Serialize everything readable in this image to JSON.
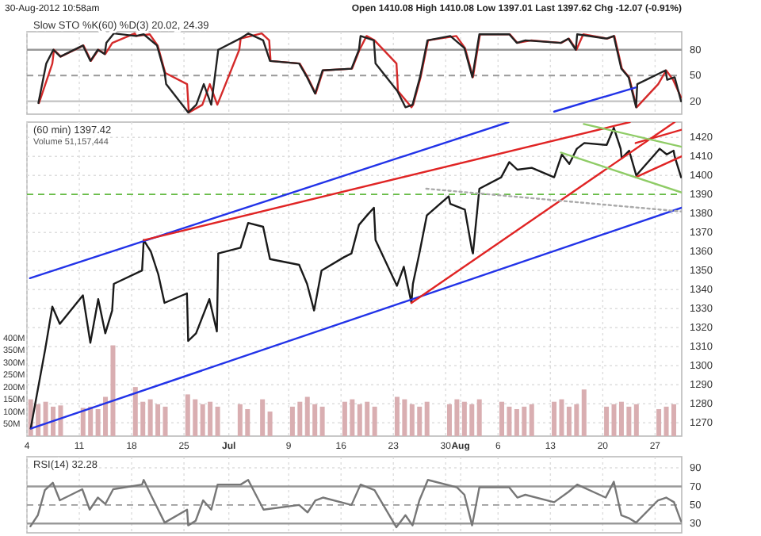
{
  "chart_data": [
    {
      "type": "line",
      "title": "Slow STO %K(60) %D(3) 20.02, 24.39",
      "annotations": [
        "30-Aug-2012 10:58am",
        "Open 1410.08 High 1410.08 Low 1397.01 Last 1397.62 Chg -12.07 (-0.91%)"
      ],
      "xlim": [
        "2012-06-04",
        "2012-08-30T13:30"
      ],
      "ylim": [
        5,
        101
      ],
      "yticks": [
        20,
        50,
        80
      ],
      "xticks": [
        {
          "value": "2012-06-04",
          "label": null
        },
        {
          "value": "2012-06-11",
          "label": null
        },
        {
          "value": "2012-06-18",
          "label": null
        },
        {
          "value": "2012-06-25",
          "label": null
        },
        {
          "value": "2012-07",
          "label": null
        },
        {
          "value": "2012-07-09",
          "label": null
        },
        {
          "value": "2012-07-16",
          "label": null
        },
        {
          "value": "2012-07-23",
          "label": null
        },
        {
          "value": "2012-07-30",
          "label": null
        },
        {
          "value": "2012-08",
          "label": null
        },
        {
          "value": "2012-08-06",
          "label": null
        },
        {
          "value": "2012-08-13",
          "label": null
        },
        {
          "value": "2012-08-20",
          "label": null
        },
        {
          "value": "2012-08-27",
          "label": null
        }
      ],
      "tick_labels": "y",
      "grid": "x",
      "marker": "none",
      "line_style": "solid",
      "ref_lines": [
        {
          "axis": "y",
          "value": 20,
          "color": "#c8c8c8"
        },
        {
          "axis": "y",
          "value": 50,
          "color": "#999999",
          "line_style": "dashed"
        },
        {
          "axis": "y",
          "value": 80,
          "color": "#999999"
        }
      ],
      "series": [
        {
          "color": "#d42a2a",
          "x": [
            "2012-06-05T14:45",
            "2012-06-07T09:30",
            "2012-06-07T14:45",
            "2012-06-08T12:45",
            "2012-06-11T13:30",
            "2012-06-12T13:30",
            "2012-06-13T13:30",
            "2012-06-14T11:30",
            "2012-06-15T10:00",
            "2012-06-18T10:00",
            "2012-06-18T15:30",
            "2012-06-20T10:00",
            "2012-06-21T11:30",
            "2012-06-22T12:00",
            "2012-06-25T10:00",
            "2012-06-25T15:30",
            "2012-06-27T11:00",
            "2012-06-28T11:00",
            "2012-06-29T11:00",
            "2012-07-02T09:30",
            "2012-07-02T14:00",
            "2012-07-05T09:30",
            "2012-07-06T09:30",
            "2012-07-06T14:00",
            "2012-07-10T11:30",
            "2012-07-11T12:45",
            "2012-07-12T14:45",
            "2012-07-13T14:45",
            "2012-07-17T11:30",
            "2012-07-18T11:30",
            "2012-07-19T10:00",
            "2012-07-20T11:30",
            "2012-07-23T10:00",
            "2012-07-23T14:45",
            "2012-07-25T10:00",
            "2012-07-25T15:30",
            "2012-07-26T15:30",
            "2012-07-27T15:30",
            "2012-07-31T10:00",
            "2012-08-01T14:00",
            "2012-08-02T15:30",
            "2012-08-03T14:00",
            "2012-08-07T14:00",
            "2012-08-08T14:00",
            "2012-08-10T11:00",
            "2012-08-14T11:30",
            "2012-08-15T11:30",
            "2012-08-16T11:30",
            "2012-08-17T09:30",
            "2012-08-20T14:45",
            "2012-08-21T13:30",
            "2012-08-22T13:30",
            "2012-08-23T12:45",
            "2012-08-24T12:45",
            "2012-08-27T10:00",
            "2012-08-28T11:30",
            "2012-08-29T10:00",
            "2012-08-30T11:30"
          ],
          "values": [
            18,
            64,
            80,
            72,
            85,
            67,
            80,
            75,
            88,
            99,
            96,
            98,
            85,
            53,
            40,
            7,
            16,
            40,
            16,
            80,
            93,
            99,
            91,
            67,
            64,
            48,
            29,
            56,
            58,
            80,
            96,
            91,
            64,
            32,
            13,
            16,
            48,
            91,
            96,
            82,
            48,
            98,
            98,
            88,
            91,
            88,
            93,
            80,
            98,
            93,
            96,
            58,
            48,
            13,
            40,
            56,
            45,
            24.39
          ]
        },
        {
          "color": "#222222",
          "x": [
            "2012-06-05T12:45",
            "2012-06-06T14:00",
            "2012-06-07T12:45",
            "2012-06-08T11:00",
            "2012-06-11T11:30",
            "2012-06-12T11:30",
            "2012-06-13T11:30",
            "2012-06-14T09:30",
            "2012-06-14T14:45",
            "2012-06-15T14:45",
            "2012-06-18T13:30",
            "2012-06-19T14:45",
            "2012-06-21T09:30",
            "2012-06-22T10:00",
            "2012-06-22T14:45",
            "2012-06-25T13:30",
            "2012-06-26T15:30",
            "2012-06-27T15:30",
            "2012-06-28T15:30",
            "2012-06-29T14:00",
            "2012-07-02T12:00",
            "2012-07-03T14:00",
            "2012-07-05T14:00",
            "2012-07-06T12:00",
            "2012-07-10T09:30",
            "2012-07-11T11:00",
            "2012-07-12T12:45",
            "2012-07-13T12:45",
            "2012-07-17T09:30",
            "2012-07-18T09:30",
            "2012-07-18T14:45",
            "2012-07-20T09:30",
            "2012-07-20T14:45",
            "2012-07-23T12:45",
            "2012-07-24T14:45",
            "2012-07-25T13:30",
            "2012-07-26T13:30",
            "2012-07-27T13:30",
            "2012-07-30T14:45",
            "2012-08-01T12:00",
            "2012-08-02T13:30",
            "2012-08-03T12:00",
            "2012-08-07T12:00",
            "2012-08-08T12:00",
            "2012-08-09T15:30",
            "2012-08-14T09:30",
            "2012-08-15T09:30",
            "2012-08-16T09:30",
            "2012-08-16T14:00",
            "2012-08-20T12:45",
            "2012-08-21T11:30",
            "2012-08-22T11:30",
            "2012-08-23T11:00",
            "2012-08-24T11:00",
            "2012-08-24T14:45",
            "2012-08-28T09:30",
            "2012-08-28T14:45",
            "2012-08-29T14:45",
            "2012-08-30T11:30"
          ],
          "values": [
            18,
            64,
            80,
            72,
            85,
            67,
            80,
            75,
            88,
            99,
            96,
            98,
            85,
            53,
            40,
            7,
            16,
            40,
            16,
            80,
            93,
            99,
            91,
            67,
            64,
            48,
            29,
            56,
            58,
            80,
            96,
            91,
            64,
            32,
            13,
            16,
            48,
            91,
            96,
            82,
            48,
            98,
            98,
            88,
            91,
            88,
            93,
            80,
            98,
            93,
            96,
            58,
            48,
            13,
            40,
            56,
            45,
            48,
            20.02
          ]
        },
        {
          "color": "#2233e8",
          "x": [
            "2012-08-13T12:00",
            "2012-08-24T09:30"
          ],
          "values": [
            8,
            36
          ]
        }
      ]
    },
    {
      "type": "line",
      "title": "(60 min) 1397.42",
      "subtitle": "Volume 51,157,444",
      "xlim": [
        "2012-06-04",
        "2012-08-30T13:30"
      ],
      "ylim": [
        1263,
        1428
      ],
      "yticks": [
        1270,
        1280,
        1290,
        1300,
        1310,
        1320,
        1330,
        1340,
        1350,
        1360,
        1370,
        1380,
        1390,
        1400,
        1410,
        1420
      ],
      "y2lim": [
        0,
        1280
      ],
      "y2ticks": [
        {
          "value": 50,
          "label": "50M"
        },
        {
          "value": 100,
          "label": "100M"
        },
        {
          "value": 150,
          "label": "150M"
        },
        {
          "value": 200,
          "label": "200M"
        },
        {
          "value": 250,
          "label": "250M"
        },
        {
          "value": 300,
          "label": "300M"
        },
        {
          "value": 350,
          "label": "350M"
        },
        {
          "value": 400,
          "label": "400M"
        }
      ],
      "xticks": [
        {
          "value": "2012-06-04",
          "label": "4"
        },
        {
          "value": "2012-06-11",
          "label": "11"
        },
        {
          "value": "2012-06-18",
          "label": "18"
        },
        {
          "value": "2012-06-25",
          "label": "25"
        },
        {
          "value": "2012-07",
          "label": "Jul"
        },
        {
          "value": "2012-07-09",
          "label": "9"
        },
        {
          "value": "2012-07-16",
          "label": "16"
        },
        {
          "value": "2012-07-23",
          "label": "23"
        },
        {
          "value": "2012-07-30",
          "label": "30"
        },
        {
          "value": "2012-08",
          "label": "Aug"
        },
        {
          "value": "2012-08-06",
          "label": "6"
        },
        {
          "value": "2012-08-13",
          "label": "13"
        },
        {
          "value": "2012-08-20",
          "label": "20"
        },
        {
          "value": "2012-08-27",
          "label": "27"
        }
      ],
      "grid": true,
      "marker": "none",
      "line_style": "solid",
      "ref_lines": [
        {
          "axis": "y",
          "value": 1390,
          "color": "#66bb44",
          "line_style": "dashed"
        }
      ],
      "series": [
        {
          "type": "bar",
          "axis": "y2",
          "color": "#d9aeb1",
          "x": [
            "2012-06-04T12:00",
            "2012-06-05T12:00",
            "2012-06-06T12:00",
            "2012-06-07T12:00",
            "2012-06-08T12:00",
            "2012-06-11T12:00",
            "2012-06-12T12:00",
            "2012-06-13T12:00",
            "2012-06-14T12:00",
            "2012-06-15T12:00",
            "2012-06-18T12:00",
            "2012-06-19T12:00",
            "2012-06-20T12:00",
            "2012-06-21T12:00",
            "2012-06-22T12:00",
            "2012-06-25T12:00",
            "2012-06-26T12:00",
            "2012-06-27T12:00",
            "2012-06-28T12:00",
            "2012-06-29T12:00",
            "2012-07-02T12:00",
            "2012-07-03T12:00",
            "2012-07-05T12:00",
            "2012-07-06T12:00",
            "2012-07-09T12:00",
            "2012-07-10T12:00",
            "2012-07-11T12:00",
            "2012-07-12T12:00",
            "2012-07-13T12:00",
            "2012-07-16T12:00",
            "2012-07-17T12:00",
            "2012-07-18T12:00",
            "2012-07-19T12:00",
            "2012-07-20T12:00",
            "2012-07-23T12:00",
            "2012-07-24T12:00",
            "2012-07-25T12:00",
            "2012-07-26T12:00",
            "2012-07-27T12:00",
            "2012-07-30T12:00",
            "2012-07-31T12:00",
            "2012-08-01T12:00",
            "2012-08-02T12:00",
            "2012-08-03T12:00",
            "2012-08-06T12:00",
            "2012-08-07T12:00",
            "2012-08-08T12:00",
            "2012-08-09T12:00",
            "2012-08-10T12:00",
            "2012-08-13T12:00",
            "2012-08-14T12:00",
            "2012-08-15T12:00",
            "2012-08-16T12:00",
            "2012-08-17T12:00",
            "2012-08-20T12:00",
            "2012-08-21T12:00",
            "2012-08-22T12:00",
            "2012-08-23T12:00",
            "2012-08-24T12:00",
            "2012-08-27T12:00",
            "2012-08-28T12:00",
            "2012-08-29T12:00"
          ],
          "values": [
            150,
            130,
            140,
            120,
            125,
            115,
            120,
            110,
            160,
            370,
            200,
            140,
            150,
            130,
            120,
            170,
            150,
            130,
            140,
            120,
            130,
            110,
            150,
            100,
            120,
            140,
            160,
            130,
            120,
            140,
            150,
            130,
            140,
            120,
            160,
            150,
            130,
            120,
            140,
            130,
            150,
            140,
            130,
            150,
            140,
            120,
            110,
            120,
            130,
            140,
            150,
            120,
            130,
            190,
            120,
            130,
            140,
            120,
            130,
            110,
            120,
            130
          ]
        },
        {
          "color": "#1a1a1a",
          "x": [
            "2012-06-04T12:00",
            "2012-06-06T11:00",
            "2012-06-07T09:30",
            "2012-06-08T09:30",
            "2012-06-11T11:30",
            "2012-06-12T11:30",
            "2012-06-13T12:45",
            "2012-06-14T11:30",
            "2012-06-15T09:30",
            "2012-06-15T14:45",
            "2012-06-19T09:30",
            "2012-06-19T14:45",
            "2012-06-20T13:30",
            "2012-06-21T13:30",
            "2012-06-22T09:30",
            "2012-06-25T09:30",
            "2012-06-25T13:30",
            "2012-06-26T14:45",
            "2012-06-28T09:30",
            "2012-06-29T09:30",
            "2012-06-29T14:00",
            "2012-07-02T13:30",
            "2012-07-03T14:00",
            "2012-07-05T14:00",
            "2012-07-06T12:00",
            "2012-07-10T09:30",
            "2012-07-11T11:00",
            "2012-07-12T09:30",
            "2012-07-13T09:30",
            "2012-07-16T09:30",
            "2012-07-17T09:30",
            "2012-07-18T09:30",
            "2012-07-19T11:30",
            "2012-07-20T09:30",
            "2012-07-20T14:45",
            "2012-07-23T11:30",
            "2012-07-24T09:30",
            "2012-07-25T10:00",
            "2012-07-25T14:45",
            "2012-07-26T11:30",
            "2012-07-27T11:30",
            "2012-07-30T09:30",
            "2012-07-30T14:45",
            "2012-08-01T13:30",
            "2012-08-02T12:00",
            "2012-08-02T15:30",
            "2012-08-03T12:00",
            "2012-08-06T10:00",
            "2012-08-07T12:00",
            "2012-08-08T14:00",
            "2012-08-10T12:00",
            "2012-08-13T12:00",
            "2012-08-14T12:45",
            "2012-08-15T12:45",
            "2012-08-16T12:45",
            "2012-08-17T12:45",
            "2012-08-20T12:45",
            "2012-08-21T11:30",
            "2012-08-22T09:30",
            "2012-08-22T12:45",
            "2012-08-23T12:45",
            "2012-08-24T11:30",
            "2012-08-27T09:30",
            "2012-08-27T14:45",
            "2012-08-28T13:30",
            "2012-08-29T11:30",
            "2012-08-29T14:45",
            "2012-08-30T11:30"
          ],
          "values": [
            1267,
            1309,
            1331,
            1322,
            1337,
            1312,
            1335,
            1317,
            1329,
            1343,
            1350,
            1366,
            1360,
            1348,
            1333,
            1338,
            1313,
            1317,
            1335,
            1318,
            1359,
            1362,
            1375,
            1373,
            1356,
            1353,
            1343,
            1329,
            1350,
            1357,
            1359,
            1374,
            1379,
            1383,
            1366,
            1342,
            1352,
            1333,
            1343,
            1359,
            1379,
            1389,
            1385,
            1382,
            1361,
            1359,
            1393,
            1399,
            1407,
            1403,
            1404,
            1399,
            1411,
            1406,
            1414,
            1417,
            1416,
            1425,
            1414,
            1409,
            1413,
            1400,
            1413,
            1414,
            1411,
            1413,
            1410,
            1399
          ]
        },
        {
          "color": "#2233e8",
          "x": [
            "2012-06-04T09:30",
            "2012-08-07T09:30"
          ],
          "values": [
            1346,
            1428
          ]
        },
        {
          "color": "#2233e8",
          "x": [
            "2012-06-04T13:30",
            "2012-08-30T13:30"
          ],
          "values": [
            1267,
            1383
          ]
        },
        {
          "color": "#e02424",
          "x": [
            "2012-06-19T14:45",
            "2012-08-23T14:45"
          ],
          "values": [
            1366,
            1428
          ]
        },
        {
          "color": "#e02424",
          "x": [
            "2012-07-25T10:00",
            "2012-08-29T14:45"
          ],
          "values": [
            1333,
            1428
          ]
        },
        {
          "color": "#e02424",
          "x": [
            "2012-08-24T09:30",
            "2012-08-30T13:30"
          ],
          "values": [
            1417,
            1424
          ]
        },
        {
          "color": "#e02424",
          "x": [
            "2012-08-24T09:30",
            "2012-08-30T13:30"
          ],
          "values": [
            1399,
            1410
          ]
        },
        {
          "color": "#8fcc66",
          "x": [
            "2012-08-17T11:00",
            "2012-08-30T13:30"
          ],
          "values": [
            1427,
            1415
          ]
        },
        {
          "color": "#8fcc66",
          "x": [
            "2012-08-14T09:30",
            "2012-08-30T13:30"
          ],
          "values": [
            1412,
            1391
          ]
        },
        {
          "color": "#aaaaaa",
          "line_style": "dotted",
          "x": [
            "2012-07-27T09:30",
            "2012-08-30T13:30"
          ],
          "values": [
            1393,
            1381
          ]
        }
      ]
    },
    {
      "type": "line",
      "title": "RSI(14) 32.28",
      "xlim": [
        "2012-06-04",
        "2012-08-30T13:30"
      ],
      "ylim": [
        20,
        102
      ],
      "yticks": [
        30,
        50,
        70,
        90
      ],
      "xticks": [
        {
          "value": "2012-06-04",
          "label": null
        },
        {
          "value": "2012-06-11",
          "label": null
        },
        {
          "value": "2012-06-18",
          "label": null
        },
        {
          "value": "2012-06-25",
          "label": null
        },
        {
          "value": "2012-07",
          "label": null
        },
        {
          "value": "2012-07-09",
          "label": null
        },
        {
          "value": "2012-07-16",
          "label": null
        },
        {
          "value": "2012-07-23",
          "label": null
        },
        {
          "value": "2012-07-30",
          "label": null
        },
        {
          "value": "2012-08",
          "label": null
        },
        {
          "value": "2012-08-06",
          "label": null
        },
        {
          "value": "2012-08-13",
          "label": null
        },
        {
          "value": "2012-08-20",
          "label": null
        },
        {
          "value": "2012-08-27",
          "label": null
        }
      ],
      "tick_labels": "y",
      "grid": true,
      "marker": "none",
      "line_style": "solid",
      "ref_lines": [
        {
          "axis": "y",
          "value": 30,
          "color": "#999999"
        },
        {
          "axis": "y",
          "value": 50,
          "color": "#999999",
          "line_style": "dashed"
        },
        {
          "axis": "y",
          "value": 70,
          "color": "#999999"
        }
      ],
      "series": [
        {
          "color": "#777777",
          "x": [
            "2012-06-04T11:00",
            "2012-06-05T11:00",
            "2012-06-06T09:30",
            "2012-06-07T11:00",
            "2012-06-08T09:30",
            "2012-06-11T09:30",
            "2012-06-12T09:30",
            "2012-06-13T11:30",
            "2012-06-14T11:30",
            "2012-06-15T12:45",
            "2012-06-19T09:30",
            "2012-06-19T14:45",
            "2012-06-20T13:30",
            "2012-06-22T10:00",
            "2012-06-25T10:00",
            "2012-06-25T13:30",
            "2012-06-26T13:30",
            "2012-06-27T13:30",
            "2012-06-28T15:30",
            "2012-06-29T12:00",
            "2012-07-02T14:00",
            "2012-07-03T14:00",
            "2012-07-05T15:30",
            "2012-07-10T09:30",
            "2012-07-11T12:45",
            "2012-07-12T14:00",
            "2012-07-13T14:00",
            "2012-07-17T09:30",
            "2012-07-18T14:45",
            "2012-07-20T11:30",
            "2012-07-23T09:30",
            "2012-07-24T14:45",
            "2012-07-25T13:30",
            "2012-07-26T11:30",
            "2012-07-27T14:45",
            "2012-07-31T12:00",
            "2012-08-01T12:00",
            "2012-08-02T12:45",
            "2012-08-03T12:00",
            "2012-08-07T12:00",
            "2012-08-08T14:00",
            "2012-08-09T15:30",
            "2012-08-13T12:00",
            "2012-08-15T09:30",
            "2012-08-16T14:00",
            "2012-08-20T09:30",
            "2012-08-21T11:30",
            "2012-08-22T11:30",
            "2012-08-23T11:00",
            "2012-08-24T11:00",
            "2012-08-27T09:30",
            "2012-08-28T11:30",
            "2012-08-29T12:45",
            "2012-08-30T11:30"
          ],
          "values": [
            27,
            39,
            66,
            74,
            55,
            67,
            45,
            58,
            51,
            67,
            72,
            77,
            61,
            31,
            45,
            28,
            33,
            55,
            45,
            72,
            72,
            77,
            45,
            50,
            42,
            55,
            58,
            50,
            72,
            66,
            26,
            39,
            28,
            55,
            77,
            69,
            61,
            28,
            69,
            69,
            58,
            61,
            53,
            64,
            72,
            58,
            75,
            39,
            36,
            31,
            55,
            58,
            53,
            32.28
          ]
        }
      ]
    }
  ]
}
